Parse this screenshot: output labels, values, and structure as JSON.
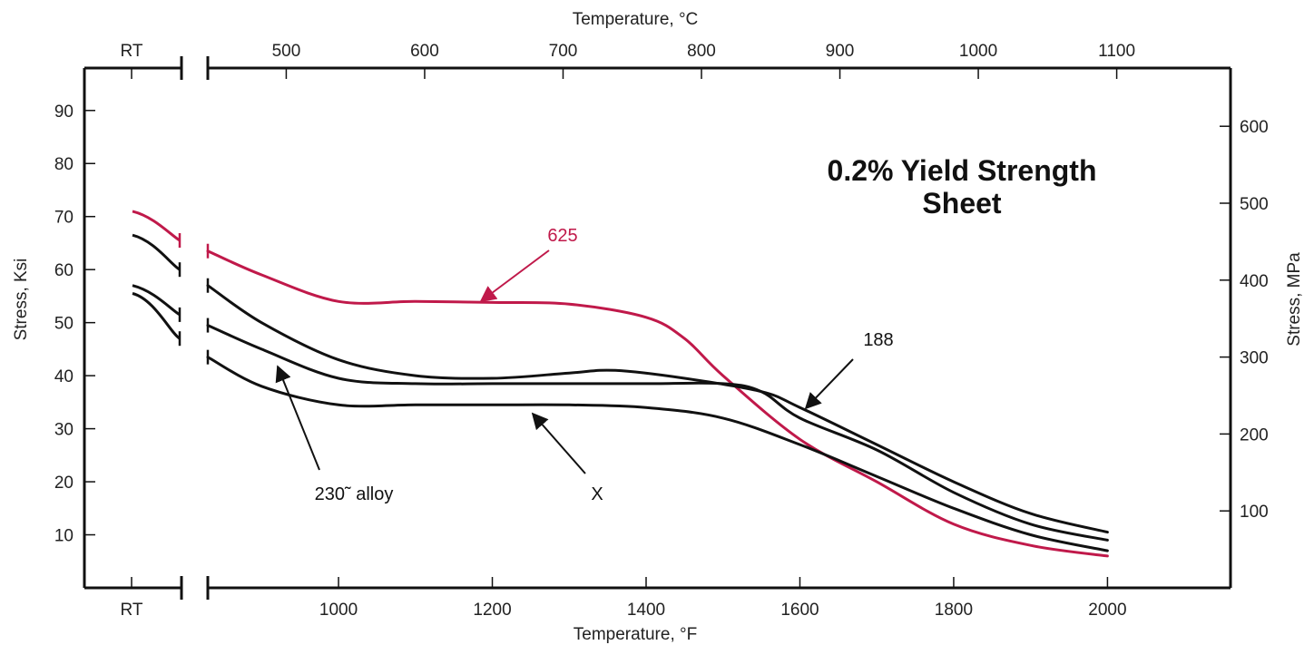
{
  "chart_data": {
    "type": "line",
    "title": "0.2% Yield Strength",
    "subtitle": "Sheet",
    "x_bottom_label": "Temperature, °F",
    "x_top_label": "Temperature, °C",
    "y_left_label": "Stress, Ksi",
    "y_right_label": "Stress, MPa",
    "rt_label": "RT",
    "x_bottom_ticks": [
      "1000",
      "1200",
      "1400",
      "1600",
      "1800",
      "2000"
    ],
    "x_top_ticks": [
      "500",
      "600",
      "700",
      "800",
      "900",
      "1000",
      "1100"
    ],
    "y_left_ticks": [
      "10",
      "20",
      "30",
      "40",
      "50",
      "60",
      "70",
      "80",
      "90"
    ],
    "y_right_ticks": [
      "100",
      "200",
      "300",
      "400",
      "500",
      "600"
    ],
    "xlim_F": [
      830,
      2160
    ],
    "ylim_ksi": [
      0,
      98
    ],
    "grid": false,
    "colors": {
      "625": "#c0194a",
      "other": "#111111",
      "axis": "#111111"
    },
    "series": [
      {
        "name": "625",
        "color": "#c0194a",
        "rt_segment": [
          71,
          65.5
        ],
        "points": [
          [
            830,
            63.5
          ],
          [
            900,
            59
          ],
          [
            1000,
            54
          ],
          [
            1100,
            54
          ],
          [
            1200,
            53.8
          ],
          [
            1300,
            53.5
          ],
          [
            1400,
            51
          ],
          [
            1450,
            47
          ],
          [
            1500,
            40
          ],
          [
            1600,
            28
          ],
          [
            1700,
            20
          ],
          [
            1800,
            12
          ],
          [
            1900,
            8
          ],
          [
            2000,
            6
          ]
        ]
      },
      {
        "name": "188",
        "color": "#111111",
        "rt_segment": [
          66.5,
          60
        ],
        "points": [
          [
            830,
            57
          ],
          [
            900,
            50
          ],
          [
            1000,
            43
          ],
          [
            1100,
            40
          ],
          [
            1200,
            39.5
          ],
          [
            1300,
            40.5
          ],
          [
            1360,
            41
          ],
          [
            1450,
            39.5
          ],
          [
            1550,
            37
          ],
          [
            1600,
            34
          ],
          [
            1700,
            27
          ],
          [
            1800,
            20
          ],
          [
            1900,
            14
          ],
          [
            2000,
            10.5
          ]
        ]
      },
      {
        "name": "230˜ alloy",
        "color": "#111111",
        "rt_segment": [
          57,
          51.5
        ],
        "points": [
          [
            830,
            49.5
          ],
          [
            900,
            45
          ],
          [
            1000,
            39.5
          ],
          [
            1100,
            38.5
          ],
          [
            1200,
            38.5
          ],
          [
            1300,
            38.5
          ],
          [
            1400,
            38.5
          ],
          [
            1500,
            38.5
          ],
          [
            1550,
            37
          ],
          [
            1600,
            32
          ],
          [
            1700,
            26
          ],
          [
            1800,
            18
          ],
          [
            1900,
            12
          ],
          [
            2000,
            9
          ]
        ]
      },
      {
        "name": "X",
        "color": "#111111",
        "rt_segment": [
          55.5,
          47
        ],
        "points": [
          [
            830,
            43.5
          ],
          [
            900,
            38
          ],
          [
            1000,
            34.5
          ],
          [
            1100,
            34.5
          ],
          [
            1200,
            34.5
          ],
          [
            1300,
            34.5
          ],
          [
            1400,
            34
          ],
          [
            1500,
            32
          ],
          [
            1600,
            27
          ],
          [
            1700,
            21
          ],
          [
            1800,
            15
          ],
          [
            1900,
            10
          ],
          [
            2000,
            7
          ]
        ]
      }
    ],
    "annotations": [
      {
        "text": "625",
        "series": "625"
      },
      {
        "text": "188",
        "series": "188"
      },
      {
        "text": "230˜ alloy",
        "series": "230˜ alloy"
      },
      {
        "text": "X",
        "series": "X"
      }
    ]
  }
}
